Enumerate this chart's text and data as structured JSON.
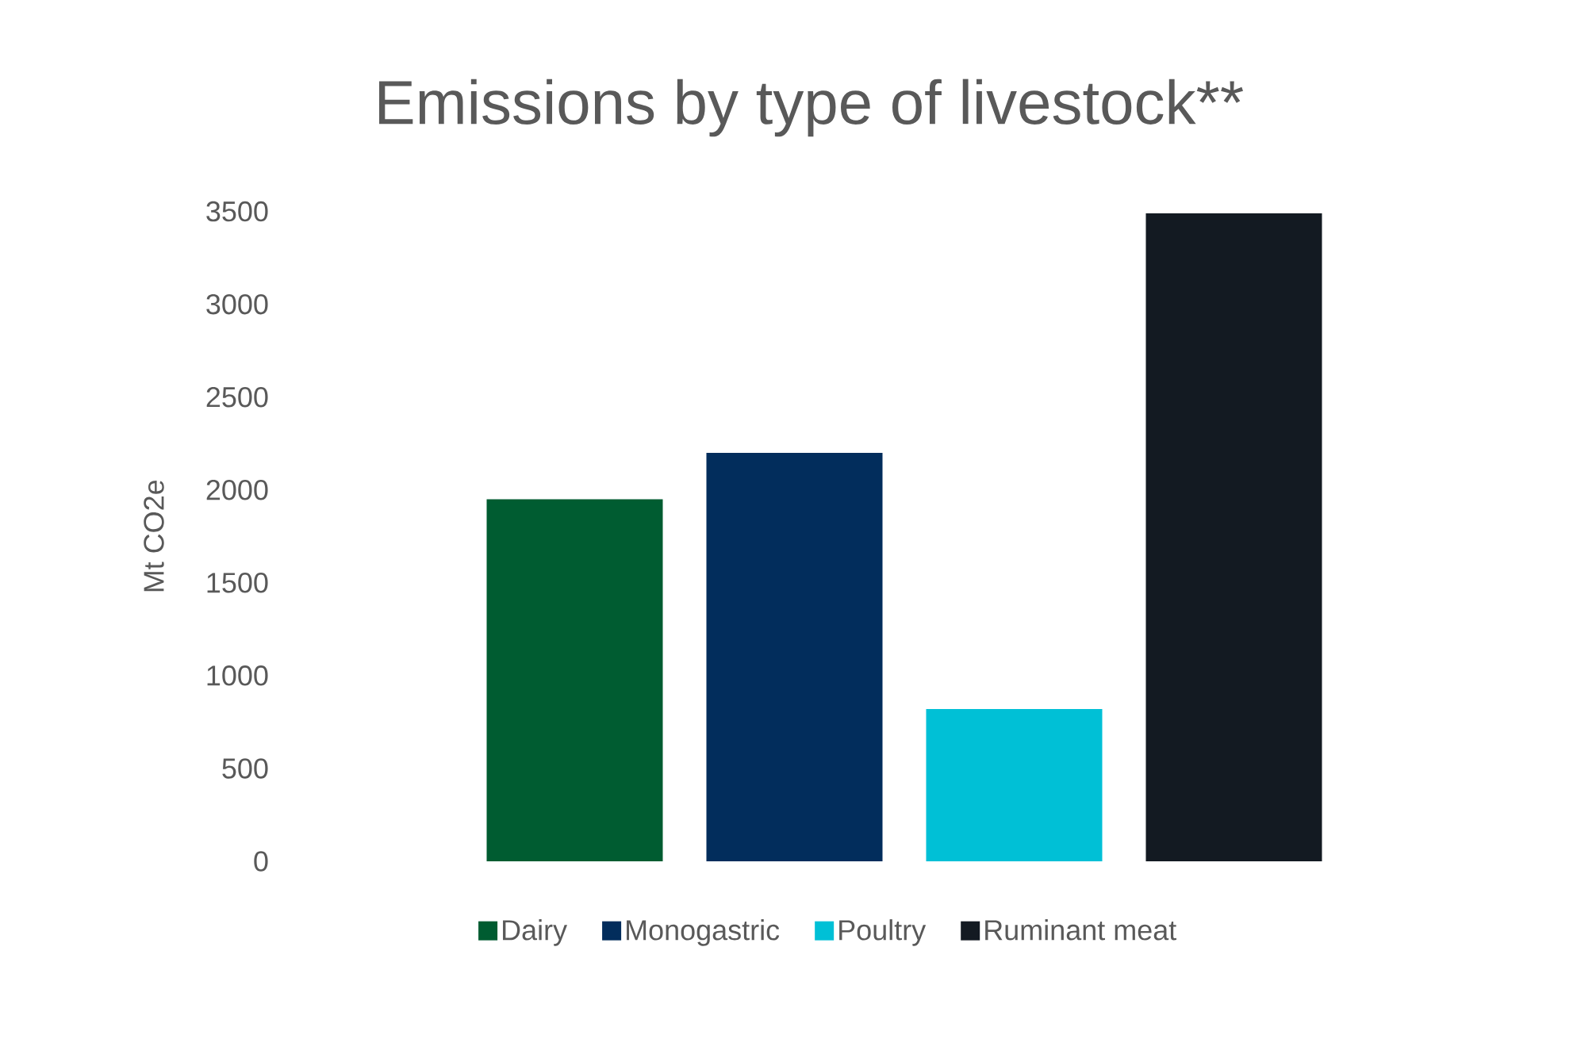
{
  "chart_data": {
    "type": "bar",
    "title": "Emissions by type of livestock**",
    "ylabel": "Mt CO2e",
    "categories": [
      null
    ],
    "series": [
      {
        "name": "Dairy",
        "color": "#005c31",
        "values": [
          1950
        ]
      },
      {
        "name": "Monogastric",
        "color": "#022d5c",
        "values": [
          2200
        ]
      },
      {
        "name": "Poultry",
        "color": "#00c0d6",
        "values": [
          820
        ]
      },
      {
        "name": "Ruminant meat",
        "color": "#131a22",
        "values": [
          3490
        ]
      }
    ],
    "ylim": [
      0,
      3500
    ],
    "yticks": [
      0,
      500,
      1000,
      1500,
      2000,
      2500,
      3000,
      3500
    ],
    "legend": "bottom"
  }
}
